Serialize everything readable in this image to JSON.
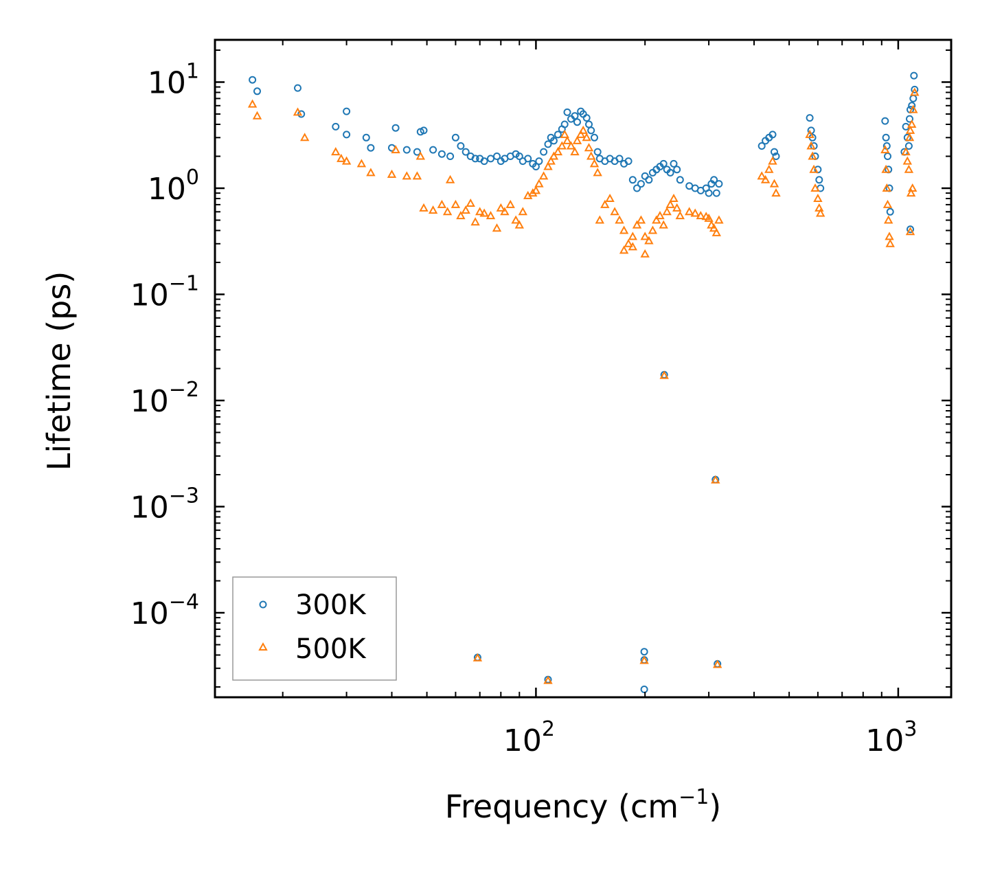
{
  "chart_data": {
    "type": "scatter",
    "title": "",
    "xlabel": "Frequency (cm",
    "xlabel_exp": "−1",
    "xlabel_suffix": ")",
    "ylabel": "Lifetime (ps)",
    "xscale": "log",
    "yscale": "log",
    "xlim": [
      13,
      1400
    ],
    "ylim": [
      1.6e-05,
      25
    ],
    "x_ticks": [
      {
        "value": 100,
        "base": "10",
        "exp": "2"
      },
      {
        "value": 1000,
        "base": "10",
        "exp": "3"
      }
    ],
    "y_ticks": [
      {
        "value": 10,
        "base": "10",
        "exp": "1"
      },
      {
        "value": 1,
        "base": "10",
        "exp": "0"
      },
      {
        "value": 0.1,
        "base": "10",
        "exp": "−1"
      },
      {
        "value": 0.01,
        "base": "10",
        "exp": "−2"
      },
      {
        "value": 0.001,
        "base": "10",
        "exp": "−3"
      },
      {
        "value": 0.0001,
        "base": "10",
        "exp": "−4"
      }
    ],
    "legend_position": "bottom-left",
    "series": [
      {
        "name": "300K",
        "marker": "circle",
        "color": "#1f77b4",
        "points": [
          [
            16.5,
            10.5
          ],
          [
            17,
            8.2
          ],
          [
            22,
            8.8
          ],
          [
            22.5,
            5.0
          ],
          [
            28,
            3.8
          ],
          [
            30,
            5.3
          ],
          [
            30,
            3.2
          ],
          [
            34,
            3.0
          ],
          [
            35,
            2.4
          ],
          [
            40,
            2.4
          ],
          [
            41,
            3.7
          ],
          [
            44,
            2.3
          ],
          [
            47,
            2.2
          ],
          [
            48,
            3.4
          ],
          [
            49,
            3.5
          ],
          [
            52,
            2.3
          ],
          [
            55,
            2.1
          ],
          [
            58,
            2.0
          ],
          [
            60,
            3.0
          ],
          [
            62,
            2.5
          ],
          [
            64,
            2.2
          ],
          [
            66,
            2.0
          ],
          [
            68,
            1.9
          ],
          [
            70,
            1.9
          ],
          [
            72,
            1.8
          ],
          [
            75,
            1.9
          ],
          [
            78,
            2.0
          ],
          [
            80,
            1.8
          ],
          [
            82,
            1.9
          ],
          [
            85,
            2.0
          ],
          [
            88,
            2.1
          ],
          [
            90,
            2.0
          ],
          [
            92,
            1.8
          ],
          [
            95,
            1.9
          ],
          [
            98,
            1.7
          ],
          [
            100,
            1.6
          ],
          [
            102,
            1.8
          ],
          [
            105,
            2.2
          ],
          [
            108,
            2.6
          ],
          [
            110,
            3.0
          ],
          [
            112,
            2.8
          ],
          [
            115,
            3.2
          ],
          [
            118,
            3.6
          ],
          [
            120,
            4.0
          ],
          [
            122,
            5.2
          ],
          [
            125,
            4.5
          ],
          [
            128,
            4.8
          ],
          [
            130,
            4.2
          ],
          [
            133,
            5.3
          ],
          [
            135,
            5.0
          ],
          [
            138,
            4.6
          ],
          [
            140,
            4.0
          ],
          [
            142,
            3.5
          ],
          [
            145,
            3.0
          ],
          [
            148,
            2.2
          ],
          [
            150,
            1.9
          ],
          [
            155,
            1.8
          ],
          [
            160,
            1.9
          ],
          [
            165,
            1.8
          ],
          [
            170,
            1.9
          ],
          [
            175,
            1.7
          ],
          [
            180,
            1.8
          ],
          [
            185,
            1.2
          ],
          [
            190,
            1.0
          ],
          [
            195,
            1.1
          ],
          [
            200,
            1.3
          ],
          [
            205,
            1.2
          ],
          [
            210,
            1.4
          ],
          [
            215,
            1.5
          ],
          [
            220,
            1.6
          ],
          [
            225,
            1.7
          ],
          [
            230,
            1.5
          ],
          [
            235,
            1.4
          ],
          [
            240,
            1.7
          ],
          [
            245,
            1.5
          ],
          [
            250,
            1.2
          ],
          [
            265,
            1.05
          ],
          [
            275,
            1.0
          ],
          [
            285,
            0.95
          ],
          [
            295,
            1.0
          ],
          [
            300,
            0.9
          ],
          [
            305,
            1.1
          ],
          [
            310,
            1.2
          ],
          [
            315,
            0.9
          ],
          [
            320,
            1.1
          ],
          [
            420,
            2.5
          ],
          [
            430,
            2.8
          ],
          [
            440,
            3.0
          ],
          [
            450,
            3.2
          ],
          [
            455,
            2.2
          ],
          [
            460,
            2.0
          ],
          [
            570,
            4.6
          ],
          [
            575,
            3.5
          ],
          [
            580,
            3.0
          ],
          [
            585,
            2.5
          ],
          [
            590,
            2.0
          ],
          [
            600,
            1.5
          ],
          [
            605,
            1.2
          ],
          [
            610,
            1.0
          ],
          [
            920,
            4.3
          ],
          [
            925,
            3.0
          ],
          [
            930,
            2.5
          ],
          [
            935,
            2.0
          ],
          [
            940,
            1.5
          ],
          [
            945,
            1.0
          ],
          [
            950,
            0.6
          ],
          [
            1050,
            3.8
          ],
          [
            1060,
            3.0
          ],
          [
            1070,
            2.5
          ],
          [
            1075,
            4.5
          ],
          [
            1080,
            5.5
          ],
          [
            1090,
            6.0
          ],
          [
            1100,
            7.0
          ],
          [
            1105,
            11.5
          ],
          [
            1110,
            8.5
          ],
          [
            1080,
            0.41
          ],
          [
            1040,
            2.2
          ],
          [
            226,
            0.0175
          ],
          [
            313,
            0.0018
          ],
          [
            69,
            3.8e-05
          ],
          [
            108,
            2.35e-05
          ],
          [
            199,
            4.3e-05
          ],
          [
            199,
            3.6e-05
          ],
          [
            199,
            1.9e-05
          ],
          [
            317,
            3.3e-05
          ]
        ]
      },
      {
        "name": "500K",
        "marker": "triangle",
        "color": "#ff7f0e",
        "points": [
          [
            16.5,
            6.2
          ],
          [
            17,
            4.8
          ],
          [
            22,
            5.2
          ],
          [
            23,
            3.0
          ],
          [
            28,
            2.2
          ],
          [
            29,
            1.9
          ],
          [
            30,
            1.8
          ],
          [
            33,
            1.7
          ],
          [
            35,
            1.4
          ],
          [
            40,
            1.35
          ],
          [
            41,
            2.3
          ],
          [
            44,
            1.3
          ],
          [
            47,
            1.3
          ],
          [
            48,
            2.0
          ],
          [
            49,
            0.65
          ],
          [
            52,
            0.62
          ],
          [
            55,
            0.7
          ],
          [
            57,
            0.6
          ],
          [
            58,
            1.2
          ],
          [
            60,
            0.7
          ],
          [
            62,
            0.55
          ],
          [
            64,
            0.62
          ],
          [
            66,
            0.72
          ],
          [
            68,
            0.48
          ],
          [
            70,
            0.6
          ],
          [
            72,
            0.58
          ],
          [
            75,
            0.55
          ],
          [
            78,
            0.42
          ],
          [
            80,
            0.65
          ],
          [
            82,
            0.6
          ],
          [
            85,
            0.7
          ],
          [
            88,
            0.5
          ],
          [
            90,
            0.45
          ],
          [
            92,
            0.6
          ],
          [
            95,
            0.85
          ],
          [
            98,
            0.9
          ],
          [
            100,
            0.95
          ],
          [
            102,
            1.1
          ],
          [
            105,
            1.3
          ],
          [
            108,
            1.6
          ],
          [
            110,
            1.8
          ],
          [
            112,
            2.0
          ],
          [
            115,
            2.2
          ],
          [
            118,
            2.5
          ],
          [
            120,
            3.2
          ],
          [
            122,
            2.8
          ],
          [
            125,
            2.5
          ],
          [
            128,
            2.2
          ],
          [
            130,
            2.8
          ],
          [
            133,
            3.2
          ],
          [
            135,
            3.5
          ],
          [
            138,
            3.0
          ],
          [
            140,
            2.4
          ],
          [
            142,
            2.0
          ],
          [
            145,
            1.7
          ],
          [
            148,
            1.4
          ],
          [
            150,
            0.5
          ],
          [
            155,
            0.7
          ],
          [
            160,
            0.8
          ],
          [
            165,
            0.6
          ],
          [
            170,
            0.5
          ],
          [
            175,
            0.4
          ],
          [
            180,
            0.3
          ],
          [
            185,
            0.35
          ],
          [
            190,
            0.45
          ],
          [
            195,
            0.5
          ],
          [
            200,
            0.35
          ],
          [
            205,
            0.32
          ],
          [
            210,
            0.4
          ],
          [
            215,
            0.5
          ],
          [
            220,
            0.55
          ],
          [
            225,
            0.45
          ],
          [
            230,
            0.6
          ],
          [
            235,
            0.7
          ],
          [
            240,
            0.8
          ],
          [
            245,
            0.65
          ],
          [
            250,
            0.55
          ],
          [
            200,
            0.24
          ],
          [
            175,
            0.26
          ],
          [
            185,
            0.28
          ],
          [
            265,
            0.6
          ],
          [
            275,
            0.58
          ],
          [
            285,
            0.55
          ],
          [
            295,
            0.54
          ],
          [
            300,
            0.52
          ],
          [
            305,
            0.45
          ],
          [
            310,
            0.42
          ],
          [
            315,
            0.38
          ],
          [
            320,
            0.5
          ],
          [
            420,
            1.3
          ],
          [
            430,
            1.2
          ],
          [
            440,
            1.5
          ],
          [
            450,
            1.8
          ],
          [
            455,
            1.1
          ],
          [
            460,
            0.9
          ],
          [
            570,
            3.2
          ],
          [
            575,
            2.5
          ],
          [
            580,
            2.0
          ],
          [
            585,
            1.5
          ],
          [
            590,
            1.0
          ],
          [
            600,
            0.8
          ],
          [
            605,
            0.65
          ],
          [
            610,
            0.58
          ],
          [
            920,
            2.3
          ],
          [
            925,
            1.5
          ],
          [
            930,
            1.0
          ],
          [
            935,
            0.7
          ],
          [
            940,
            0.5
          ],
          [
            945,
            0.35
          ],
          [
            950,
            0.3
          ],
          [
            1050,
            2.2
          ],
          [
            1060,
            1.8
          ],
          [
            1070,
            1.5
          ],
          [
            1075,
            3.0
          ],
          [
            1080,
            3.5
          ],
          [
            1090,
            4.0
          ],
          [
            1100,
            5.5
          ],
          [
            1110,
            8.0
          ],
          [
            1095,
            1.0
          ],
          [
            1085,
            0.9
          ],
          [
            1080,
            0.39
          ],
          [
            226,
            0.0172
          ],
          [
            313,
            0.00178
          ],
          [
            69,
            3.75e-05
          ],
          [
            108,
            2.3e-05
          ],
          [
            199,
            3.55e-05
          ],
          [
            317,
            3.25e-05
          ]
        ]
      }
    ]
  }
}
